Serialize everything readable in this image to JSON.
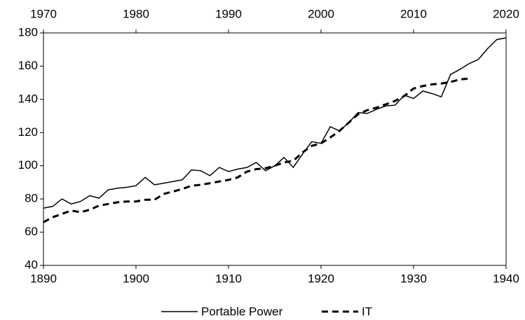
{
  "chart_data": {
    "type": "line",
    "xlim": [
      1890,
      1940
    ],
    "xticks": [
      1890,
      1900,
      1910,
      1920,
      1930,
      1940
    ],
    "x2lim": [
      1970,
      2020
    ],
    "x2ticks": [
      1970,
      1980,
      1990,
      2000,
      2010,
      2020
    ],
    "ylim": [
      40,
      180
    ],
    "yticks": [
      40,
      60,
      80,
      100,
      120,
      140,
      160,
      180
    ],
    "legend": "bottom",
    "series": [
      {
        "name": "Portable Power",
        "color": "#000000",
        "dash": "solid",
        "x": [
          1890,
          1891,
          1892,
          1893,
          1894,
          1895,
          1896,
          1897,
          1898,
          1899,
          1900,
          1901,
          1902,
          1903,
          1904,
          1905,
          1906,
          1907,
          1908,
          1909,
          1910,
          1911,
          1912,
          1913,
          1914,
          1915,
          1916,
          1917,
          1918,
          1919,
          1920,
          1921,
          1922,
          1923,
          1924,
          1925,
          1926,
          1927,
          1928,
          1929,
          1930,
          1931,
          1932,
          1933,
          1934,
          1935,
          1936,
          1937,
          1938,
          1939,
          1940
        ],
        "values": [
          74.5,
          75.5,
          80,
          77,
          78.5,
          82,
          80.5,
          85.5,
          86.5,
          87,
          88,
          93,
          88.5,
          89.5,
          90.5,
          91.5,
          97.5,
          97,
          94,
          99,
          96.5,
          98,
          99,
          102,
          97,
          100,
          105,
          99,
          107,
          114.5,
          113.5,
          123.5,
          121,
          126,
          132,
          131.5,
          134,
          136,
          136.5,
          142.5,
          140.5,
          145,
          143.5,
          141.5,
          155,
          158,
          161.5,
          164,
          170.5,
          176,
          177
        ]
      },
      {
        "name": "IT",
        "color": "#000000",
        "dash": "dashed",
        "axis": "x2",
        "x": [
          1970,
          1971,
          1972,
          1973,
          1974,
          1975,
          1976,
          1977,
          1978,
          1979,
          1980,
          1981,
          1982,
          1983,
          1984,
          1985,
          1986,
          1987,
          1988,
          1989,
          1990,
          1991,
          1992,
          1993,
          1994,
          1995,
          1996,
          1997,
          1998,
          1999,
          2000,
          2001,
          2002,
          2003,
          2004,
          2005,
          2006,
          2007,
          2008,
          2009,
          2010,
          2011,
          2012,
          2013,
          2014,
          2015,
          2016
        ],
        "values": [
          66,
          69,
          71,
          73,
          72,
          73.5,
          76,
          77,
          78,
          78.5,
          78.5,
          79.5,
          79.5,
          83,
          84.5,
          86,
          88,
          88.5,
          89.5,
          90.5,
          91.5,
          93,
          96.5,
          98,
          98.5,
          100,
          102,
          103,
          108,
          112,
          113.5,
          117,
          121,
          126,
          131,
          133.5,
          135,
          137,
          139,
          142,
          146.5,
          148,
          149,
          149.5,
          150.5,
          152,
          152.5
        ]
      }
    ]
  }
}
